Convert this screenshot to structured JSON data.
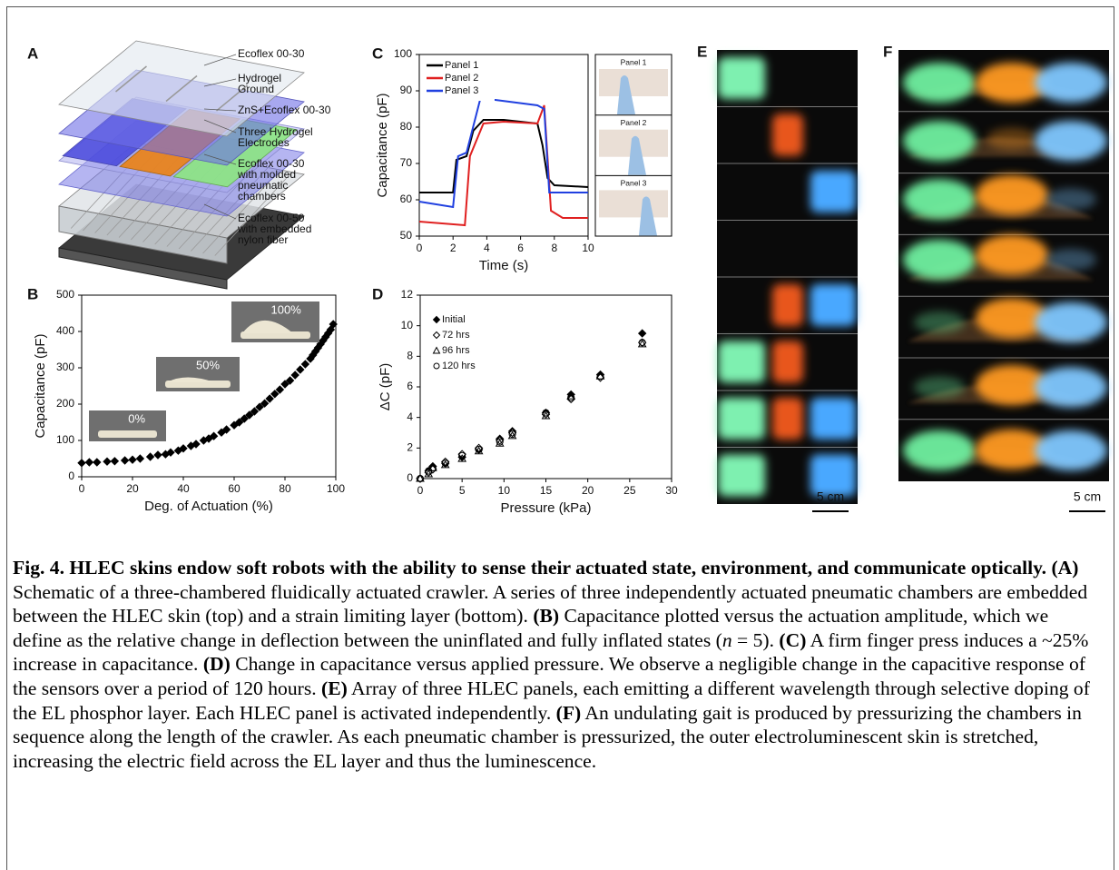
{
  "figure": {
    "panel_letters": [
      "A",
      "B",
      "C",
      "D",
      "E",
      "F"
    ],
    "schematic_labels": [
      [
        "Ecoflex 00-30"
      ],
      [
        "Hydrogel",
        "Ground"
      ],
      [
        "ZnS+Ecoflex 00-30"
      ],
      [
        "Three Hydrogel",
        "Electrodes"
      ],
      [
        "Ecoflex 00-30",
        "with molded",
        "pneumatic",
        "chambers"
      ],
      [
        "Ecoflex 00-50",
        "with embedded",
        "nylon fiber"
      ]
    ],
    "scale_bars": [
      "5 cm",
      "5 cm"
    ]
  },
  "chart_data": [
    {
      "type": "scatter",
      "label": "B",
      "xlabel": "Deg. of Actuation (%)",
      "ylabel": "Capacitance (pF)",
      "x": [
        0,
        3,
        6,
        10,
        13,
        17,
        20,
        23,
        27,
        30,
        33,
        35,
        38,
        40,
        43,
        45,
        48,
        50,
        52,
        55,
        57,
        60,
        62,
        64,
        66,
        68,
        70,
        72,
        74,
        76,
        78,
        80,
        82,
        84,
        86,
        88,
        90,
        91,
        92,
        93,
        94,
        95,
        96,
        97,
        98,
        99
      ],
      "values": [
        38,
        40,
        40,
        42,
        43,
        45,
        47,
        50,
        55,
        60,
        62,
        67,
        72,
        78,
        85,
        90,
        100,
        105,
        112,
        122,
        130,
        142,
        150,
        160,
        170,
        180,
        192,
        202,
        215,
        228,
        240,
        255,
        265,
        280,
        295,
        310,
        325,
        335,
        345,
        355,
        365,
        375,
        385,
        395,
        405,
        420
      ],
      "marker": "diamond-filled",
      "color": "#000000",
      "xlim": [
        0,
        100
      ],
      "xticks": [
        0,
        20,
        40,
        60,
        80,
        100
      ],
      "ylim": [
        0,
        500
      ],
      "yticks": [
        0,
        100,
        200,
        300,
        400,
        500
      ],
      "insets": [
        "0%",
        "50%",
        "100%"
      ]
    },
    {
      "type": "line",
      "label": "C",
      "xlabel": "Time (s)",
      "ylabel": "Capacitance (pF)",
      "legend": "upper left",
      "series": [
        {
          "name": "Panel 1",
          "color": "#000000",
          "x": [
            0,
            2,
            2.2,
            2.8,
            3.2,
            3.8,
            5,
            7,
            7.3,
            7.6,
            8,
            10
          ],
          "values": [
            62,
            62,
            71,
            72,
            79,
            82,
            82,
            81,
            75,
            66,
            64,
            63.5
          ]
        },
        {
          "name": "Panel 2",
          "color": "#e02020",
          "x": [
            0,
            2.7,
            3,
            3.8,
            5,
            7,
            7.4,
            7.8,
            8.5,
            10
          ],
          "values": [
            54,
            53,
            72,
            81,
            81.5,
            81,
            86,
            57,
            55,
            55
          ]
        },
        {
          "name": "Panel 3",
          "color": "#2040e0",
          "x": [
            0,
            2,
            2.3,
            2.8,
            3.6,
            4.5,
            7,
            7.4,
            7.7,
            10
          ],
          "values": [
            59.5,
            58,
            72,
            73,
            87.5,
            87.5,
            86,
            85,
            62,
            62
          ]
        }
      ],
      "xlim": [
        0,
        10
      ],
      "xticks": [
        0,
        2,
        4,
        6,
        8,
        10
      ],
      "ylim": [
        50,
        100
      ],
      "yticks": [
        50,
        60,
        70,
        80,
        90,
        100
      ],
      "insets": [
        "Panel 1",
        "Panel 2",
        "Panel 3"
      ]
    },
    {
      "type": "scatter",
      "label": "D",
      "xlabel": "Pressure (kPa)",
      "ylabel": "ΔC (pF)",
      "legend": "upper left",
      "x": [
        0,
        1,
        1.5,
        3,
        5,
        7,
        9.5,
        11,
        15,
        18,
        21.5,
        26.5
      ],
      "series": [
        {
          "name": "Initial",
          "marker": "diamond-filled",
          "color": "#000000",
          "values": [
            0,
            0.5,
            0.8,
            1.0,
            1.4,
            1.9,
            2.6,
            3.1,
            4.3,
            5.5,
            6.8,
            9.5
          ]
        },
        {
          "name": "72 hrs",
          "marker": "diamond-open",
          "color": "#000000",
          "values": [
            0,
            0.4,
            0.6,
            1.1,
            1.6,
            2.0,
            2.5,
            3.0,
            4.2,
            5.2,
            6.6,
            8.9
          ]
        },
        {
          "name": "96 hrs",
          "marker": "triangle-open",
          "color": "#000000",
          "values": [
            0,
            0.3,
            0.7,
            0.9,
            1.3,
            1.8,
            2.3,
            2.8,
            4.1,
            5.4,
            6.7,
            8.8
          ]
        },
        {
          "name": "120 hrs",
          "marker": "circle-open",
          "color": "#000000",
          "values": [
            0,
            0.5,
            0.7,
            1.0,
            1.5,
            1.9,
            2.4,
            2.9,
            4.3,
            5.3,
            6.7,
            8.9
          ]
        }
      ],
      "xlim": [
        0,
        30
      ],
      "xticks": [
        0,
        5,
        10,
        15,
        20,
        25,
        30
      ],
      "ylim": [
        0,
        12
      ],
      "yticks": [
        0,
        2,
        4,
        6,
        8,
        10,
        12
      ]
    }
  ],
  "caption": [
    {
      "text": "Fig. 4. HLEC skins endow soft robots with the ability to sense their actuated state, environment, and communicate optically. ",
      "style": "bold"
    },
    {
      "text": "(A)",
      "style": "bold"
    },
    {
      "text": " Schematic of a three-chambered fluidically actuated crawler. A series of three independently actuated pneumatic chambers are embedded between the HLEC skin (top) and a strain limiting layer (bottom). ",
      "style": "normal"
    },
    {
      "text": "(B)",
      "style": "bold"
    },
    {
      "text": " Capacitance plotted versus the actuation amplitude, which we define as the relative change in deflection between the uninflated and fully inflated states (",
      "style": "normal"
    },
    {
      "text": "n",
      "style": "italic"
    },
    {
      "text": " = 5). ",
      "style": "normal"
    },
    {
      "text": "(C)",
      "style": "bold"
    },
    {
      "text": " A firm finger press induces a ~25% increase in capacitance. ",
      "style": "normal"
    },
    {
      "text": "(D)",
      "style": "bold"
    },
    {
      "text": " Change in capacitance versus applied pressure. We observe a negligible change in the capacitive response of the sensors over a period of 120 hours. ",
      "style": "normal"
    },
    {
      "text": "(E)",
      "style": "bold"
    },
    {
      "text": " Array of three HLEC panels, each emitting a different wavelength through selective doping of the EL phosphor layer. Each HLEC panel is activated independently. ",
      "style": "normal"
    },
    {
      "text": "(F)",
      "style": "bold"
    },
    {
      "text": " An undulating gait is produced by pressurizing the chambers in sequence along the length of the crawler. As each pneumatic chamber is pressurized, the outer electroluminescent skin is stretched, increasing the electric field across the EL layer and thus the luminescence.",
      "style": "normal"
    }
  ]
}
